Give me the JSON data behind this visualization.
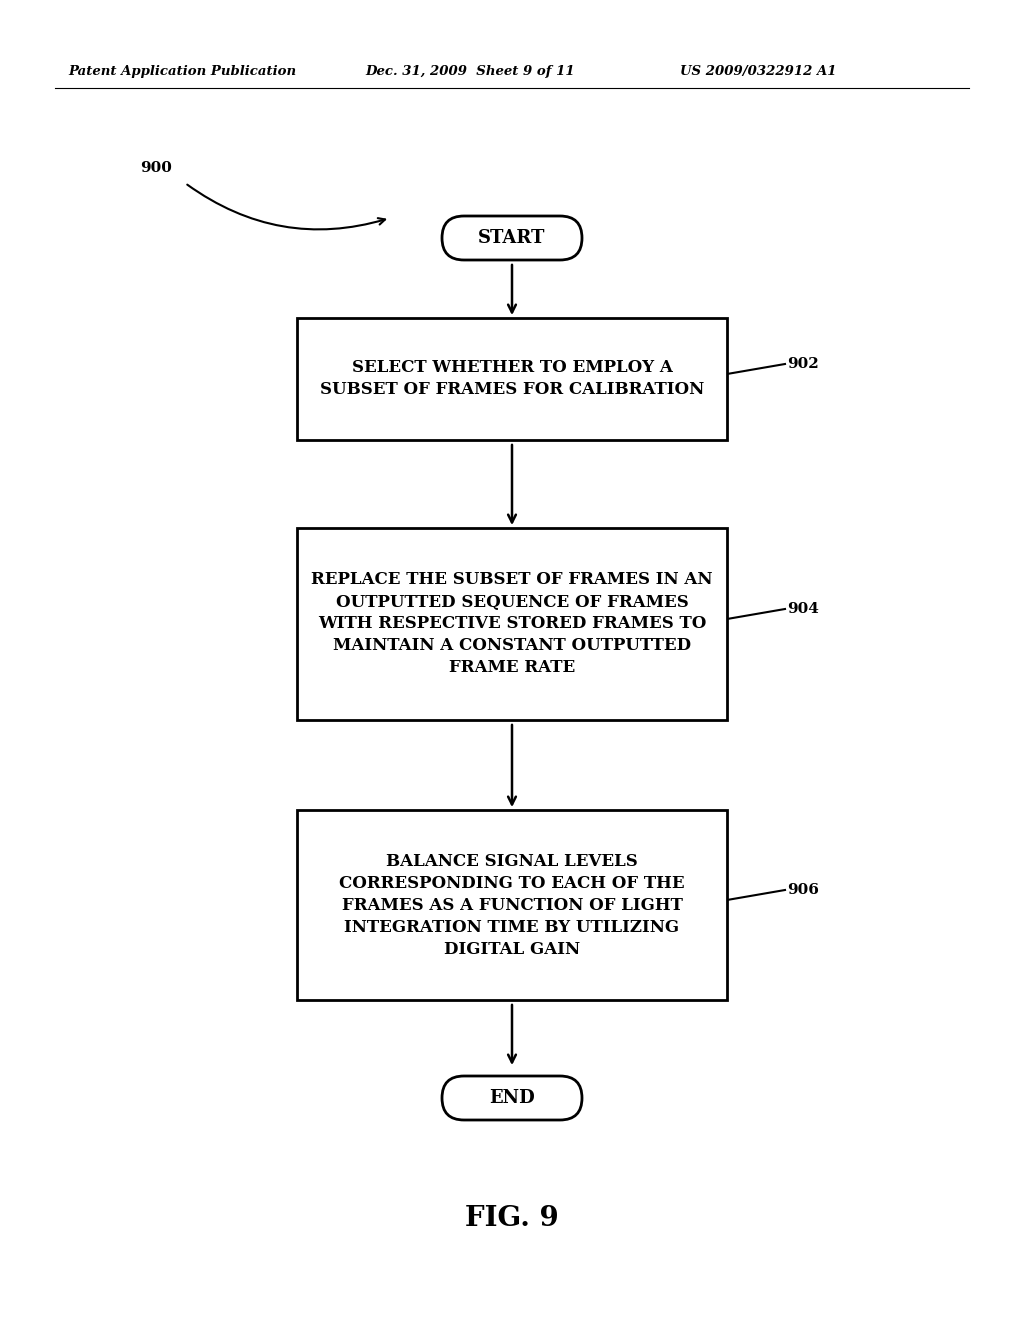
{
  "background_color": "#ffffff",
  "header_left": "Patent Application Publication",
  "header_mid": "Dec. 31, 2009  Sheet 9 of 11",
  "header_right": "US 2009/0322912 A1",
  "figure_label": "900",
  "fig_caption": "FIG. 9",
  "start_text": "START",
  "end_text": "END",
  "boxes": [
    {
      "label": "902",
      "lines": [
        "SELECT WHETHER TO EMPLOY A",
        "SUBSET OF FRAMES FOR CALIBRATION"
      ]
    },
    {
      "label": "904",
      "lines": [
        "REPLACE THE SUBSET OF FRAMES IN AN",
        "OUTPUTTED SEQUENCE OF FRAMES",
        "WITH RESPECTIVE STORED FRAMES TO",
        "MAINTAIN A CONSTANT OUTPUTTED",
        "FRAME RATE"
      ]
    },
    {
      "label": "906",
      "lines": [
        "BALANCE SIGNAL LEVELS",
        "CORRESPONDING TO EACH OF THE",
        "FRAMES AS A FUNCTION OF LIGHT",
        "INTEGRATION TIME BY UTILIZING",
        "DIGITAL GAIN"
      ]
    }
  ]
}
